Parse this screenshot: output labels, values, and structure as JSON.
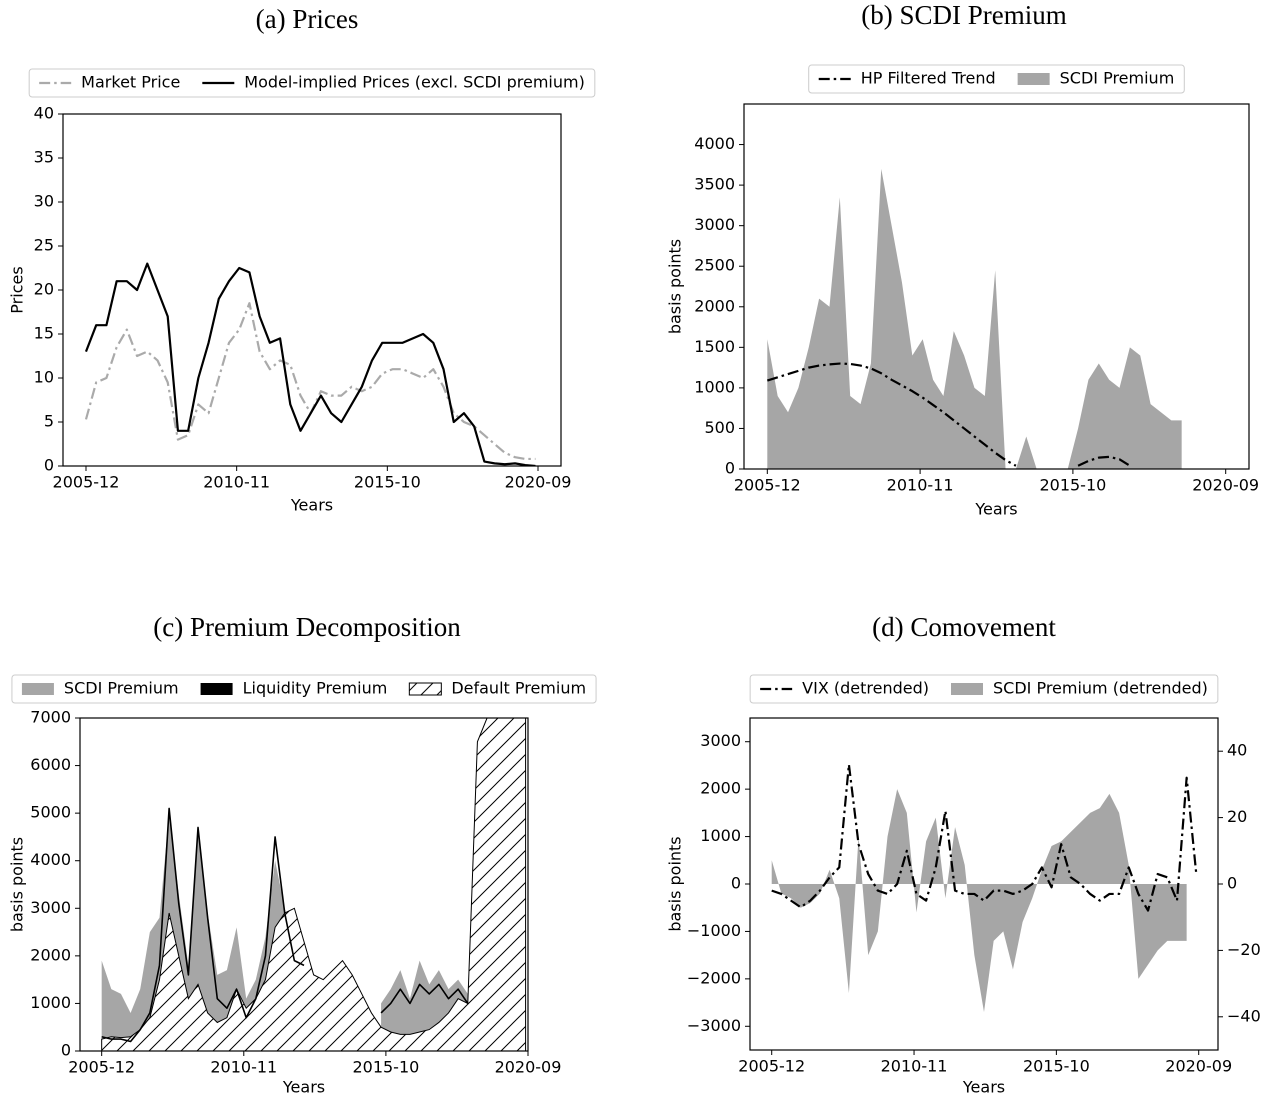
{
  "chart_data": [
    {
      "type": "line",
      "title": "(a) Prices",
      "xlabel": "Years",
      "ylabel": "Prices",
      "legend": "top",
      "x": [
        "2005-12",
        "2006-04",
        "2006-08",
        "2006-12",
        "2007-04",
        "2007-08",
        "2007-12",
        "2008-04",
        "2008-08",
        "2008-12",
        "2009-04",
        "2009-08",
        "2009-12",
        "2010-04",
        "2010-08",
        "2010-12",
        "2011-04",
        "2011-08",
        "2011-12",
        "2012-04",
        "2012-08",
        "2012-12",
        "2013-04",
        "2013-08",
        "2013-12",
        "2014-04",
        "2014-08",
        "2014-12",
        "2015-04",
        "2015-08",
        "2015-12",
        "2016-04",
        "2016-08",
        "2016-12",
        "2017-04",
        "2017-08",
        "2017-12",
        "2018-04",
        "2018-08",
        "2018-12",
        "2019-04",
        "2019-08",
        "2019-12",
        "2020-04",
        "2020-08"
      ],
      "xlim": [
        "2005-03",
        "2021-06"
      ],
      "xticks": [
        "2005-12",
        "2010-11",
        "2015-10",
        "2020-09"
      ],
      "ylim": [
        0,
        40
      ],
      "yticks": [
        0,
        5,
        10,
        15,
        20,
        25,
        30,
        35,
        40
      ],
      "series": [
        {
          "name": "Market Price",
          "color": "#aaaaaa",
          "style": "dashdot",
          "values": [
            5.3,
            9.5,
            10,
            13.5,
            15.5,
            12.5,
            13,
            12,
            9.5,
            3,
            3.5,
            7,
            6,
            10,
            14,
            15.5,
            18.5,
            13,
            11,
            12,
            11.5,
            8,
            6,
            8.5,
            8,
            8,
            9,
            8.5,
            9,
            10.5,
            11,
            11,
            10.5,
            10,
            11,
            9,
            6,
            5,
            4.5,
            3.5,
            2.5,
            1.5,
            1,
            0.8,
            0.8
          ]
        },
        {
          "name": "Model-implied Prices (excl. SCDI premium)",
          "color": "#000000",
          "style": "solid",
          "values": [
            13,
            16,
            16,
            21,
            21,
            20,
            23,
            20,
            17,
            4,
            4,
            10,
            14,
            19,
            21,
            22.5,
            22,
            17,
            14,
            14.5,
            7,
            4,
            6,
            8,
            6,
            5,
            7,
            9,
            12,
            14,
            14,
            14,
            14.5,
            15,
            14,
            11,
            5,
            6,
            4.5,
            0.5,
            0.3,
            0.2,
            0.3,
            0.1,
            0
          ]
        }
      ]
    },
    {
      "type": "line",
      "title": "(b) SCDI Premium",
      "xlabel": "Years",
      "ylabel": "basis points",
      "legend": "top",
      "x": [
        "2005-12",
        "2006-04",
        "2006-08",
        "2006-12",
        "2007-04",
        "2007-08",
        "2007-12",
        "2008-04",
        "2008-08",
        "2008-12",
        "2009-04",
        "2009-08",
        "2009-12",
        "2010-04",
        "2010-08",
        "2010-12",
        "2011-04",
        "2011-08",
        "2011-12",
        "2012-04",
        "2012-08",
        "2012-12",
        "2013-04",
        "2013-08",
        "2013-12",
        "2014-04",
        "2014-08",
        "2014-12",
        "2015-04",
        "2015-08",
        "2015-12",
        "2016-04",
        "2016-08",
        "2016-12",
        "2017-04",
        "2017-08",
        "2017-12",
        "2018-04",
        "2018-08",
        "2018-12",
        "2019-04",
        "2019-08",
        "2019-12",
        "2020-04",
        "2020-08"
      ],
      "xlim": [
        "2005-03",
        "2021-06"
      ],
      "xticks": [
        "2005-12",
        "2010-11",
        "2015-10",
        "2020-09"
      ],
      "ylim": [
        0,
        4500
      ],
      "yticks": [
        0,
        500,
        1000,
        1500,
        2000,
        2500,
        3000,
        3500,
        4000
      ],
      "series": [
        {
          "name": "HP Filtered Trend",
          "color": "#000000",
          "style": "dashdot",
          "values": [
            1090,
            1130,
            1170,
            1210,
            1250,
            1275,
            1290,
            1300,
            1295,
            1275,
            1240,
            1180,
            1100,
            1030,
            960,
            880,
            790,
            700,
            600,
            500,
            400,
            300,
            200,
            110,
            40,
            null,
            null,
            null,
            null,
            null,
            40,
            100,
            140,
            150,
            120,
            40,
            null,
            null,
            null,
            null,
            null,
            null,
            null,
            null,
            null
          ]
        },
        {
          "name": "SCDI Premium",
          "color": "#a6a6a6",
          "style": "area",
          "values": [
            1600,
            900,
            700,
            1000,
            1500,
            2100,
            2000,
            3350,
            900,
            800,
            1300,
            3700,
            3000,
            2300,
            1400,
            1600,
            1100,
            900,
            1700,
            1400,
            1000,
            900,
            2450,
            0,
            0,
            400,
            0,
            0,
            0,
            0,
            500,
            1100,
            1300,
            1100,
            1000,
            1500,
            1400,
            800,
            700,
            600,
            600,
            null,
            null,
            null,
            null
          ]
        }
      ]
    },
    {
      "type": "line",
      "title": "(c) Premium Decomposition",
      "xlabel": "Years",
      "ylabel": "basis points",
      "legend": "top",
      "x": [
        "2005-12",
        "2006-04",
        "2006-08",
        "2006-12",
        "2007-04",
        "2007-08",
        "2007-12",
        "2008-04",
        "2008-08",
        "2008-12",
        "2009-04",
        "2009-08",
        "2009-12",
        "2010-04",
        "2010-08",
        "2010-12",
        "2011-04",
        "2011-08",
        "2011-12",
        "2012-04",
        "2012-08",
        "2012-12",
        "2013-04",
        "2013-08",
        "2013-12",
        "2014-04",
        "2014-08",
        "2014-12",
        "2015-04",
        "2015-08",
        "2015-12",
        "2016-04",
        "2016-08",
        "2016-12",
        "2017-04",
        "2017-08",
        "2017-12",
        "2018-04",
        "2018-08",
        "2018-12",
        "2019-04",
        "2019-08",
        "2019-12",
        "2020-04",
        "2020-08"
      ],
      "xlim": [
        "2005-03",
        "2020-09"
      ],
      "xticks": [
        "2005-12",
        "2010-11",
        "2015-10",
        "2020-09"
      ],
      "ylim": [
        0,
        7000
      ],
      "yticks": [
        0,
        1000,
        2000,
        3000,
        4000,
        5000,
        6000,
        7000
      ],
      "series": [
        {
          "name": "SCDI Premium",
          "color": "#a6a6a6",
          "style": "area",
          "values": [
            1900,
            1300,
            1200,
            800,
            1300,
            2500,
            2800,
            5000,
            3300,
            1800,
            4600,
            2900,
            1600,
            1700,
            2600,
            1100,
            1500,
            2400,
            4000,
            3000,
            2200,
            1900,
            null,
            null,
            null,
            null,
            null,
            null,
            null,
            1000,
            1300,
            1700,
            1100,
            1900,
            1400,
            1700,
            1300,
            1500,
            1200,
            null,
            null,
            null,
            null,
            null,
            null
          ]
        },
        {
          "name": "Liquidity Premium",
          "color": "#000000",
          "style": "outline",
          "values": [
            300,
            250,
            250,
            200,
            450,
            800,
            1800,
            5100,
            3100,
            1600,
            4700,
            2800,
            1100,
            900,
            1300,
            700,
            1100,
            2000,
            4500,
            2900,
            1900,
            1800,
            null,
            null,
            null,
            null,
            null,
            null,
            null,
            800,
            1000,
            1300,
            1000,
            1400,
            1200,
            1400,
            1100,
            1300,
            1000,
            null,
            null,
            null,
            null,
            null,
            null
          ]
        },
        {
          "name": "Default Premium",
          "color": "#000000",
          "style": "hatch",
          "values": [
            250,
            300,
            280,
            300,
            450,
            700,
            1500,
            2900,
            2000,
            1100,
            1400,
            800,
            600,
            700,
            1300,
            900,
            1100,
            1500,
            2600,
            2900,
            3000,
            2300,
            1600,
            1500,
            1700,
            1900,
            1600,
            1200,
            800,
            500,
            400,
            350,
            350,
            400,
            450,
            600,
            800,
            1100,
            1000,
            6500,
            7000,
            7000,
            7000,
            7000,
            7000
          ]
        }
      ]
    },
    {
      "type": "line",
      "title": "(d) Comovement",
      "xlabel": "Years",
      "ylabel": "basis points",
      "legend": "top",
      "x": [
        "2005-12",
        "2006-04",
        "2006-08",
        "2006-12",
        "2007-04",
        "2007-08",
        "2007-12",
        "2008-04",
        "2008-08",
        "2008-12",
        "2009-04",
        "2009-08",
        "2009-12",
        "2010-04",
        "2010-08",
        "2010-12",
        "2011-04",
        "2011-08",
        "2011-12",
        "2012-04",
        "2012-08",
        "2012-12",
        "2013-04",
        "2013-08",
        "2013-12",
        "2014-04",
        "2014-08",
        "2014-12",
        "2015-04",
        "2015-08",
        "2015-12",
        "2016-04",
        "2016-08",
        "2016-12",
        "2017-04",
        "2017-08",
        "2017-12",
        "2018-04",
        "2018-08",
        "2018-12",
        "2019-04",
        "2019-08",
        "2019-12",
        "2020-04",
        "2020-08"
      ],
      "xlim": [
        "2005-03",
        "2021-05"
      ],
      "xticks": [
        "2005-12",
        "2010-11",
        "2015-10",
        "2020-09"
      ],
      "ylim": [
        -3500,
        3500
      ],
      "yticks": [
        {
          "value": -3000,
          "label": "−3000"
        },
        {
          "value": -2000,
          "label": "−2000"
        },
        {
          "value": -1000,
          "label": "−1000"
        },
        0,
        1000,
        2000,
        3000
      ],
      "y2lim": [
        -50,
        50
      ],
      "y2ticks": [
        {
          "value": -40,
          "label": "−40"
        },
        {
          "value": -20,
          "label": "−20"
        },
        0,
        20,
        40
      ],
      "series": [
        {
          "name": "VIX (detrended)",
          "color": "#000000",
          "style": "dashdot",
          "axis": "y2",
          "values": [
            -2,
            -3,
            -5,
            -7,
            -5,
            -2,
            2,
            5,
            36,
            12,
            3,
            -2,
            -3,
            0,
            10,
            -3,
            -5,
            5,
            22,
            -2,
            -3,
            -3,
            -5,
            -2,
            -2,
            -3,
            -2,
            0,
            5,
            -1,
            12,
            2,
            0,
            -3,
            -5,
            -3,
            -3,
            5,
            -3,
            -8,
            3,
            2,
            -5,
            32,
            3
          ]
        },
        {
          "name": "SCDI Premium (detrended)",
          "color": "#a6a6a6",
          "style": "area",
          "values": [
            500,
            -200,
            -300,
            -500,
            -400,
            -200,
            300,
            -300,
            -2300,
            1000,
            -1500,
            -1000,
            1000,
            2000,
            1500,
            -600,
            900,
            1400,
            -300,
            1200,
            400,
            -1500,
            -2700,
            -1200,
            -1000,
            -1800,
            -800,
            -300,
            300,
            800,
            900,
            1100,
            1300,
            1500,
            1600,
            1900,
            1500,
            400,
            -2000,
            -1700,
            -1400,
            -1200,
            -1200,
            -1200,
            null
          ]
        }
      ]
    }
  ]
}
